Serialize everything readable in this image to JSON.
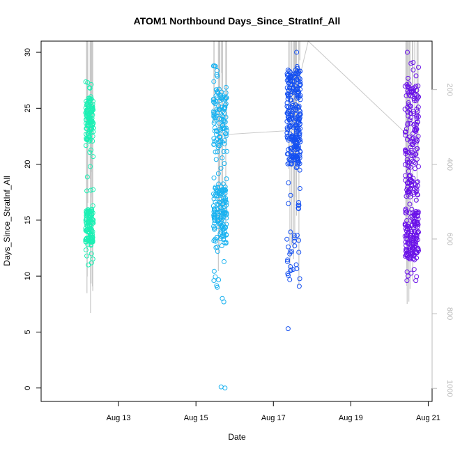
{
  "chart_data": {
    "type": "scatter",
    "title": "ATOM1 Northbound Days_Since_StratInf_All",
    "xlabel": "Date",
    "ylabel": "Days_Since_StratInf_All",
    "x_ticks": [
      "Aug 13",
      "Aug 15",
      "Aug 17",
      "Aug 19",
      "Aug 21"
    ],
    "x_tick_values": [
      13,
      15,
      17,
      19,
      21
    ],
    "x_range": [
      11.0,
      21.1
    ],
    "y_ticks": [
      "0",
      "5",
      "10",
      "15",
      "20",
      "25",
      "30"
    ],
    "y_tick_values": [
      0,
      5,
      10,
      15,
      20,
      25,
      30
    ],
    "y_range": [
      -1.2,
      31.0
    ],
    "y2_ticks": [
      "200",
      "400",
      "600",
      "800",
      "1000"
    ],
    "y2_tick_values": [
      200,
      400,
      600,
      800,
      1000
    ],
    "y2_range": [
      1035,
      70
    ],
    "y2_axis_color": "#bbbbbb",
    "grid": false,
    "series": [
      {
        "date_range": [
          12.15,
          12.35
        ],
        "color": "#1cf0b4",
        "points": 240,
        "y_range": [
          11.0,
          27.4
        ],
        "dense_bands": [
          [
            13,
            16
          ],
          [
            22,
            26
          ]
        ],
        "outliers": [
          [
            12.22,
            11.0
          ],
          [
            12.18,
            11.8
          ],
          [
            12.3,
            12.0
          ],
          [
            12.2,
            27.3
          ]
        ],
        "profile_depth_range": [
          330,
          800
        ]
      },
      {
        "date_range": [
          15.45,
          15.8
        ],
        "color": "#1ab2f0",
        "points": 260,
        "y_range": [
          0.0,
          29.0
        ],
        "dense_bands": [
          [
            13,
            18
          ],
          [
            21,
            27
          ]
        ],
        "outliers": [
          [
            15.65,
            0.1
          ],
          [
            15.75,
            0.0
          ],
          [
            15.72,
            7.7
          ],
          [
            15.68,
            8.0
          ],
          [
            15.55,
            9.0
          ]
        ],
        "profile_depth_range": [
          150,
          800
        ]
      },
      {
        "date_range": [
          17.35,
          17.7
        ],
        "color": "#1550f0",
        "points": 300,
        "y_range": [
          5.3,
          30.0
        ],
        "dense_bands": [
          [
            20,
            28.5
          ]
        ],
        "outliers": [
          [
            17.38,
            5.3
          ],
          [
            17.35,
            13.3
          ],
          [
            17.55,
            12.7
          ],
          [
            17.6,
            30.0
          ]
        ],
        "profile_depth_range": [
          120,
          800
        ]
      },
      {
        "date_range": [
          20.4,
          20.75
        ],
        "color": "#6a12e8",
        "points": 320,
        "y_range": [
          9.5,
          30.0
        ],
        "dense_bands": [
          [
            11.5,
            16
          ],
          [
            17,
            27
          ]
        ],
        "outliers": [
          [
            20.45,
            9.6
          ],
          [
            20.68,
            9.6
          ],
          [
            20.46,
            30.0
          ]
        ],
        "profile_depth_range": [
          170,
          800
        ]
      }
    ],
    "trace_line": {
      "color": "#c8c8c8",
      "x": [
        15.8,
        17.35,
        17.9,
        20.45
      ],
      "y2": [
        320,
        310,
        70,
        320
      ]
    }
  }
}
